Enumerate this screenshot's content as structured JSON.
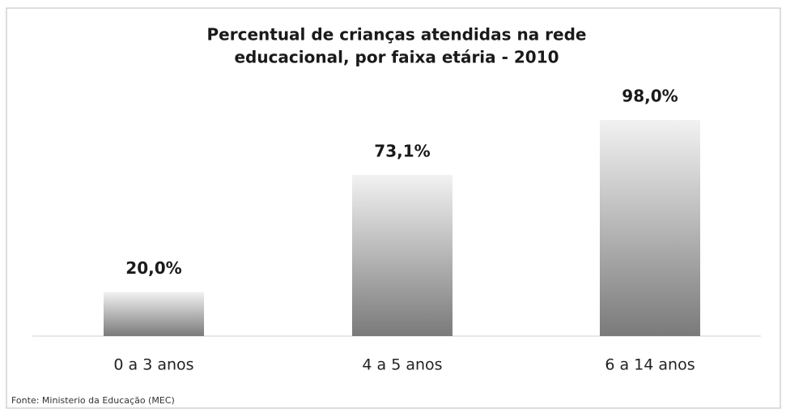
{
  "chart_data": {
    "type": "bar",
    "title_lines": [
      "Percentual de crianças atendidas na rede",
      "educacional, por faixa etária - 2010"
    ],
    "categories": [
      "0 a 3 anos",
      "4 a 5 anos",
      "6 a 14 anos"
    ],
    "values": [
      20.0,
      73.1,
      98.0
    ],
    "value_labels": [
      "20,0%",
      "73,1%",
      "98,0%"
    ],
    "color": "#7a7a7a",
    "source": "Fonte: Ministerio da Educação (MEC)"
  }
}
